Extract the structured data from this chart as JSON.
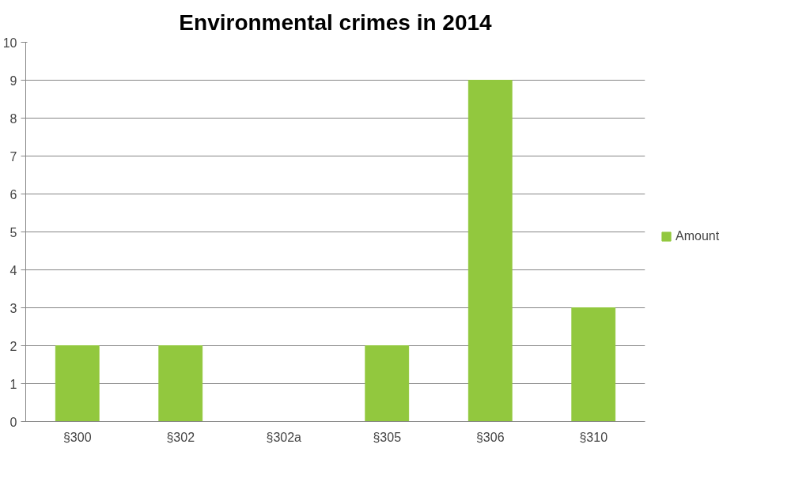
{
  "chart_data": {
    "type": "bar",
    "title": "Environmental crimes in 2014",
    "categories": [
      "§300",
      "§302",
      "§302a",
      "§305",
      "§306",
      "§310"
    ],
    "series": [
      {
        "name": "Amount",
        "color": "#92c83e",
        "values": [
          2,
          2,
          0,
          2,
          9,
          3
        ]
      }
    ],
    "ylim": [
      0,
      10
    ],
    "yticks": [
      0,
      1,
      2,
      3,
      4,
      5,
      6,
      7,
      8,
      9,
      10
    ],
    "grid": "y",
    "legend": "right"
  }
}
